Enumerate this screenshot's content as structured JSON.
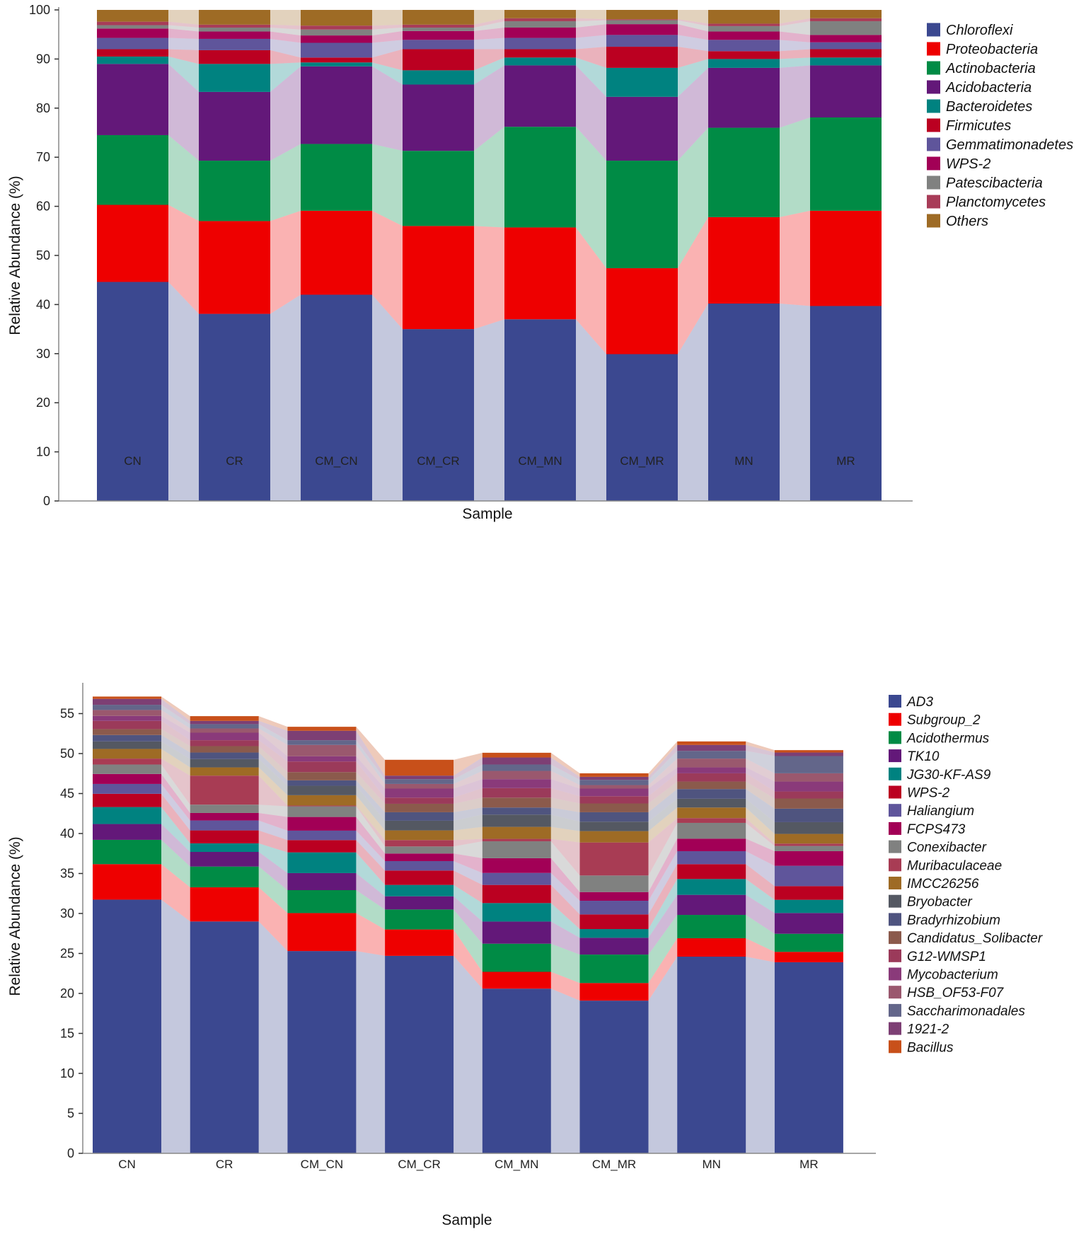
{
  "chart_data": [
    {
      "type": "bar",
      "stacked": true,
      "title": "",
      "xlabel": "Sample",
      "ylabel": "Relative Abundance (%)",
      "ylim": [
        0,
        100
      ],
      "yticks": [
        "0",
        "10",
        "20",
        "30",
        "40",
        "50",
        "60",
        "70",
        "80",
        "90",
        "100"
      ],
      "grid": false,
      "legend_position": "right",
      "categories": [
        "CN",
        "CR",
        "CM_CN",
        "CM_CR",
        "CM_MN",
        "CM_MR",
        "MN",
        "MR"
      ],
      "series": [
        {
          "name": "Chloroflexi",
          "color": "#3b4890",
          "values": [
            44.6,
            38.1,
            42.0,
            35.0,
            37.0,
            29.9,
            40.2,
            39.7
          ]
        },
        {
          "name": "Proteobacteria",
          "color": "#ee0000",
          "values": [
            15.7,
            18.9,
            17.1,
            21.0,
            18.7,
            17.5,
            17.6,
            19.4
          ]
        },
        {
          "name": "Actinobacteria",
          "color": "#008b45",
          "values": [
            14.2,
            12.3,
            13.6,
            15.3,
            20.5,
            21.9,
            18.2,
            19.0
          ]
        },
        {
          "name": "Acidobacteria",
          "color": "#631879",
          "values": [
            14.5,
            14.0,
            15.8,
            13.5,
            12.5,
            13.0,
            12.2,
            10.6
          ]
        },
        {
          "name": "Bacteroidetes",
          "color": "#008280",
          "values": [
            1.5,
            5.7,
            0.8,
            2.9,
            1.6,
            5.9,
            1.8,
            1.6
          ]
        },
        {
          "name": "Firmicutes",
          "color": "#bb0021",
          "values": [
            1.5,
            2.8,
            1.0,
            4.3,
            1.7,
            4.3,
            1.6,
            1.7
          ]
        },
        {
          "name": "Gemmatimonadetes",
          "color": "#5f559b",
          "values": [
            2.3,
            2.3,
            3.0,
            1.9,
            2.3,
            2.4,
            2.3,
            1.4
          ]
        },
        {
          "name": "WPS-2",
          "color": "#a20056",
          "values": [
            1.9,
            1.5,
            1.5,
            1.8,
            2.1,
            2.2,
            1.7,
            1.5
          ]
        },
        {
          "name": "Patescibacteria",
          "color": "#808180",
          "values": [
            0.7,
            0.8,
            1.2,
            0.7,
            1.3,
            0.8,
            1.1,
            2.8
          ]
        },
        {
          "name": "Planctomycetes",
          "color": "#a83c58",
          "values": [
            0.7,
            0.6,
            0.8,
            0.6,
            0.6,
            0.2,
            0.5,
            0.6
          ]
        },
        {
          "name": "Others",
          "color": "#9e6b25",
          "values": [
            2.4,
            3.0,
            3.2,
            3.0,
            1.7,
            1.9,
            2.8,
            1.7
          ]
        }
      ]
    },
    {
      "type": "bar",
      "stacked": true,
      "title": "",
      "xlabel": "Sample",
      "ylabel": "Relative Abundance (%)",
      "ylim": [
        0,
        58.5
      ],
      "yticks": [
        "0",
        "5",
        "10",
        "15",
        "20",
        "25",
        "30",
        "35",
        "40",
        "45",
        "50",
        "55"
      ],
      "grid": false,
      "legend_position": "right",
      "categories": [
        "CN",
        "CR",
        "CM_CN",
        "CM_CR",
        "CM_MN",
        "CM_MR",
        "MN",
        "MR"
      ],
      "series": [
        {
          "name": "AD3",
          "color": "#3b4890",
          "values": [
            31.73,
            29.0,
            25.3,
            24.7,
            20.6,
            19.1,
            24.6,
            23.9
          ]
        },
        {
          "name": "Subgroup_2",
          "color": "#ee0000",
          "values": [
            4.44,
            4.27,
            4.75,
            3.3,
            2.1,
            2.2,
            2.3,
            1.3
          ]
        },
        {
          "name": "Acidothermus",
          "color": "#008b45",
          "values": [
            3.04,
            2.6,
            2.87,
            2.5,
            3.52,
            3.56,
            2.92,
            2.26
          ]
        },
        {
          "name": "TK10",
          "color": "#631879",
          "values": [
            1.98,
            1.83,
            2.13,
            1.65,
            2.77,
            2.1,
            2.51,
            2.6
          ]
        },
        {
          "name": "JG30-KF-AS9",
          "color": "#008280",
          "values": [
            2.12,
            1.07,
            2.59,
            1.42,
            2.31,
            1.09,
            1.98,
            1.65
          ]
        },
        {
          "name": "WPS-2",
          "color": "#bb0021",
          "values": [
            1.66,
            1.62,
            1.54,
            1.8,
            2.27,
            1.83,
            1.86,
            1.71
          ]
        },
        {
          "name": "Haliangium",
          "color": "#5f559b",
          "values": [
            1.23,
            1.24,
            1.18,
            1.18,
            1.5,
            1.71,
            1.62,
            2.54
          ]
        },
        {
          "name": "FCPS473",
          "color": "#a20056",
          "values": [
            1.25,
            0.94,
            1.71,
            0.95,
            1.84,
            1.09,
            1.57,
            1.83
          ]
        },
        {
          "name": "Conexibacter",
          "color": "#808180",
          "values": [
            1.18,
            1.04,
            1.33,
            0.88,
            2.12,
            2.07,
            1.97,
            0.65
          ]
        },
        {
          "name": "Muribaculaceae",
          "color": "#a83c54",
          "values": [
            0.74,
            3.63,
            0.1,
            0.8,
            0.3,
            4.13,
            0.6,
            0.3
          ]
        },
        {
          "name": "IMCC26256",
          "color": "#9e6b25",
          "values": [
            1.21,
            1.03,
            1.29,
            1.21,
            1.5,
            1.42,
            1.32,
            1.21
          ]
        },
        {
          "name": "Bryobacter",
          "color": "#545862",
          "values": [
            0.94,
            1.04,
            1.18,
            1.21,
            1.54,
            1.18,
            1.1,
            1.47
          ]
        },
        {
          "name": "Bradyrhizobium",
          "color": "#4f547f",
          "values": [
            0.8,
            0.82,
            0.68,
            1.06,
            0.88,
            1.18,
            1.21,
            1.69
          ]
        },
        {
          "name": "Candidatus_Solibacter",
          "color": "#8b5a4c",
          "values": [
            0.74,
            0.8,
            1.03,
            1.06,
            1.24,
            1.1,
            0.94,
            1.27
          ]
        },
        {
          "name": "G12-WMSP1",
          "color": "#9b3a5a",
          "values": [
            1.03,
            0.74,
            1.33,
            0.77,
            1.19,
            0.91,
            1.03,
            0.88
          ]
        },
        {
          "name": "Mycobacterium",
          "color": "#8a3a7a",
          "values": [
            0.62,
            0.94,
            0.65,
            1.13,
            1.12,
            0.95,
            0.74,
            1.24
          ]
        },
        {
          "name": "HSB_OF53-F07",
          "color": "#9a586e",
          "values": [
            0.74,
            0.53,
            1.42,
            0.58,
            1.03,
            0.44,
            1.1,
            1.03
          ]
        },
        {
          "name": "Saccharimonadales",
          "color": "#63668a",
          "values": [
            0.65,
            0.54,
            0.59,
            0.6,
            0.8,
            0.65,
            0.97,
            2.16
          ]
        },
        {
          "name": "1921-2",
          "color": "#7d3f74",
          "values": [
            0.74,
            0.41,
            1.18,
            0.44,
            0.88,
            0.38,
            0.74,
            0.44
          ]
        },
        {
          "name": "Bacillus",
          "color": "#c8501a",
          "values": [
            0.29,
            0.59,
            0.5,
            1.98,
            0.59,
            0.44,
            0.44,
            0.3
          ]
        }
      ]
    }
  ]
}
